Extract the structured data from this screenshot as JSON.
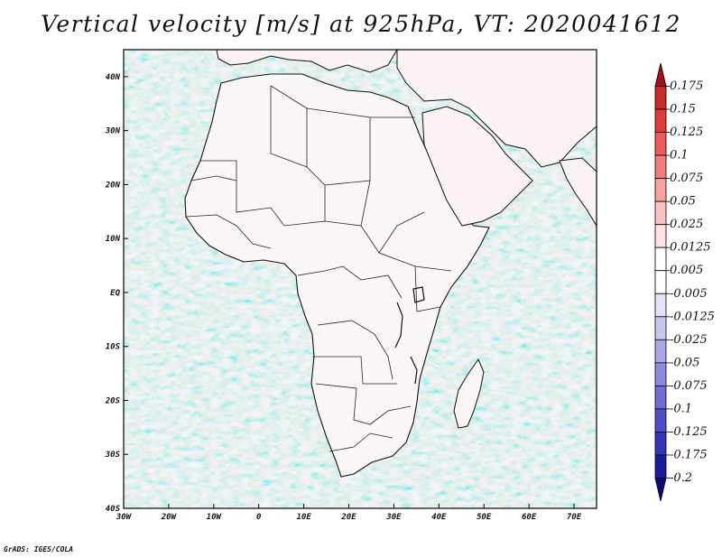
{
  "title": "Vertical velocity [m/s] at 925hPa, VT: 2020041612",
  "credit": "GrADS: IGES/COLA",
  "map": {
    "region": "Africa and surrounding oceans",
    "variable": "Vertical velocity",
    "units": "m/s",
    "level": "925hPa",
    "valid_time": "2020041612",
    "lon_range": [
      -30,
      75
    ],
    "lat_range": [
      -40,
      45
    ],
    "lon_ticks": [
      {
        "value": -30,
        "label": "30W"
      },
      {
        "value": -20,
        "label": "20W"
      },
      {
        "value": -10,
        "label": "10W"
      },
      {
        "value": 0,
        "label": "0"
      },
      {
        "value": 10,
        "label": "10E"
      },
      {
        "value": 20,
        "label": "20E"
      },
      {
        "value": 30,
        "label": "30E"
      },
      {
        "value": 40,
        "label": "40E"
      },
      {
        "value": 50,
        "label": "50E"
      },
      {
        "value": 60,
        "label": "60E"
      },
      {
        "value": 70,
        "label": "70E"
      }
    ],
    "lat_ticks": [
      {
        "value": 40,
        "label": "40N"
      },
      {
        "value": 30,
        "label": "30N"
      },
      {
        "value": 20,
        "label": "20N"
      },
      {
        "value": 10,
        "label": "10N"
      },
      {
        "value": 0,
        "label": "EQ"
      },
      {
        "value": -10,
        "label": "10S"
      },
      {
        "value": -20,
        "label": "20S"
      },
      {
        "value": -30,
        "label": "30S"
      },
      {
        "value": -40,
        "label": "40S"
      }
    ],
    "colors": {
      "ocean_field": "#f3f3fb",
      "land": "#ffffff",
      "coastline": "#111111"
    }
  },
  "colorbar": {
    "levels": [
      "0.175",
      "0.15",
      "0.125",
      "0.1",
      "0.075",
      "0.05",
      "0.025",
      "0.0125",
      "0.005",
      "-0.005",
      "-0.0125",
      "-0.025",
      "-0.05",
      "-0.075",
      "-0.1",
      "-0.125",
      "-0.175",
      "-0.2"
    ],
    "colors": [
      "#a50f15",
      "#c92a2a",
      "#de3b3b",
      "#ec5a5a",
      "#f27d7d",
      "#f7a0a0",
      "#fbc3c3",
      "#fde0e0",
      "#ffffff",
      "#ffffff",
      "#e2e2f7",
      "#c6c6f0",
      "#a9a9e8",
      "#8c8cde",
      "#6d6dd4",
      "#4f4fc8",
      "#3434b8",
      "#1c1c9c",
      "#0a0a78"
    ]
  }
}
